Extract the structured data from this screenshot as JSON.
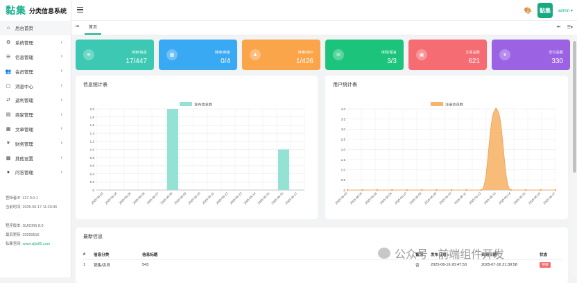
{
  "app": {
    "brand": "黏集",
    "system_name": "分类信息系统"
  },
  "header": {
    "user": "admin",
    "avatar_text": "黏集"
  },
  "sidebar": {
    "items": [
      {
        "icon": "home-icon",
        "glyph": "⌂",
        "label": "后台首页",
        "has_submenu": false
      },
      {
        "icon": "gear-icon",
        "glyph": "⚙",
        "label": "系统管理",
        "has_submenu": true
      },
      {
        "icon": "list-icon",
        "glyph": "☰",
        "label": "信息管理",
        "has_submenu": true
      },
      {
        "icon": "users-icon",
        "glyph": "👥",
        "label": "会员管理",
        "has_submenu": true
      },
      {
        "icon": "message-icon",
        "glyph": "▢",
        "label": "消息中心",
        "has_submenu": true
      },
      {
        "icon": "share-icon",
        "glyph": "⇄",
        "label": "返利管理",
        "has_submenu": true
      },
      {
        "icon": "store-icon",
        "glyph": "▤",
        "label": "商家管理",
        "has_submenu": true
      },
      {
        "icon": "document-icon",
        "glyph": "▦",
        "label": "文章管理",
        "has_submenu": true
      },
      {
        "icon": "yen-icon",
        "glyph": "¥",
        "label": "财务管理",
        "has_submenu": true
      },
      {
        "icon": "grid-icon",
        "glyph": "▩",
        "label": "其他设置",
        "has_submenu": true
      },
      {
        "icon": "chat-icon",
        "glyph": "●",
        "label": "问答管理",
        "has_submenu": true
      }
    ],
    "login_ip": "登陆者IP: 127.0.0.1",
    "last_login": "当前时间: 2025-06-17 11:20:36",
    "version": "程序版本: SUICMS 8.0",
    "updated": "最后更新: 20250616",
    "site_label": "私集官网: ",
    "site_link": "www.sijix65.com"
  },
  "tabs": {
    "home": "首页"
  },
  "cards": [
    {
      "label": "待审/信息",
      "value": "17/447",
      "color": "#3cc8b3",
      "icon": "layers-icon",
      "glyph": "≋"
    },
    {
      "label": "待审/商家",
      "value": "0/4",
      "color": "#3aa9f3",
      "icon": "store-icon",
      "glyph": "▦"
    },
    {
      "label": "待审/用户",
      "value": "1/426",
      "color": "#fba54a",
      "icon": "user-icon",
      "glyph": "♟"
    },
    {
      "label": "待回/留言",
      "value": "3/3",
      "color": "#1cc47b",
      "icon": "comment-icon",
      "glyph": "✉"
    },
    {
      "label": "文章总数",
      "value": "621",
      "color": "#f56c72",
      "icon": "article-icon",
      "glyph": "▣"
    },
    {
      "label": "支付总额",
      "value": "330",
      "color": "#9b62e3",
      "icon": "yen-icon",
      "glyph": "¥"
    }
  ],
  "info_panel": {
    "title": "信息统计表"
  },
  "user_panel": {
    "title": "用户统计表"
  },
  "chart_data": [
    {
      "type": "bar",
      "title": "信息统计表",
      "categories": [
        "2025-06-03",
        "2025-06-04",
        "2025-06-05",
        "2025-06-06",
        "2025-06-07",
        "2025-06-08",
        "2025-06-09",
        "2025-06-10",
        "2025-06-11",
        "2025-06-12",
        "2025-06-13",
        "2025-06-14",
        "2025-06-15",
        "2025-06-16",
        "2025-06-17"
      ],
      "series": [
        {
          "name": "发布信息数",
          "values": [
            0,
            0,
            0,
            0,
            0,
            2,
            0,
            0,
            0,
            0,
            0,
            0,
            0,
            1,
            0
          ],
          "color": "#93e2d4"
        }
      ],
      "ylim": [
        0,
        2.0
      ],
      "yticks": [
        "0",
        "0.2",
        "0.4",
        "0.6",
        "0.8",
        "1.0",
        "1.2",
        "1.4",
        "1.6",
        "1.8",
        "2.0"
      ],
      "legend": "top-center",
      "grid": true
    },
    {
      "type": "area",
      "title": "用户统计表",
      "categories": [
        "2025-06-03",
        "2025-06-04",
        "2025-06-05",
        "2025-06-06",
        "2025-06-07",
        "2025-06-08",
        "2025-06-09",
        "2025-06-10",
        "2025-06-11",
        "2025-06-12",
        "2025-06-13",
        "2025-06-14",
        "2025-06-15",
        "2025-06-16",
        "2025-06-17"
      ],
      "series": [
        {
          "name": "注册会员数",
          "values": [
            0,
            0,
            0,
            0,
            0,
            0,
            0,
            0,
            0,
            0,
            4,
            0,
            0,
            0,
            0
          ],
          "color": "#f7b56c"
        }
      ],
      "ylim": [
        0,
        4.0
      ],
      "yticks": [
        "0",
        "0.5",
        "1.0",
        "1.5",
        "2.0",
        "2.5",
        "3.0",
        "3.5",
        "4.0"
      ],
      "legend": "top-center",
      "grid": true
    }
  ],
  "latest": {
    "title": "最新信息",
    "columns": [
      "#",
      "信息分类",
      "信息标题",
      "置顶",
      "发布日期",
      "到期日期",
      "状态"
    ],
    "sort_icon": "≡",
    "rows": [
      {
        "no": "1",
        "category": "销售/店员",
        "title": "543",
        "top": "否",
        "published": "2025-06-16 20:47:53",
        "expires": "2025-07-16 21:39:58",
        "status": "待审"
      }
    ]
  },
  "watermark": {
    "text": "公众号 · 前端组件开发"
  }
}
